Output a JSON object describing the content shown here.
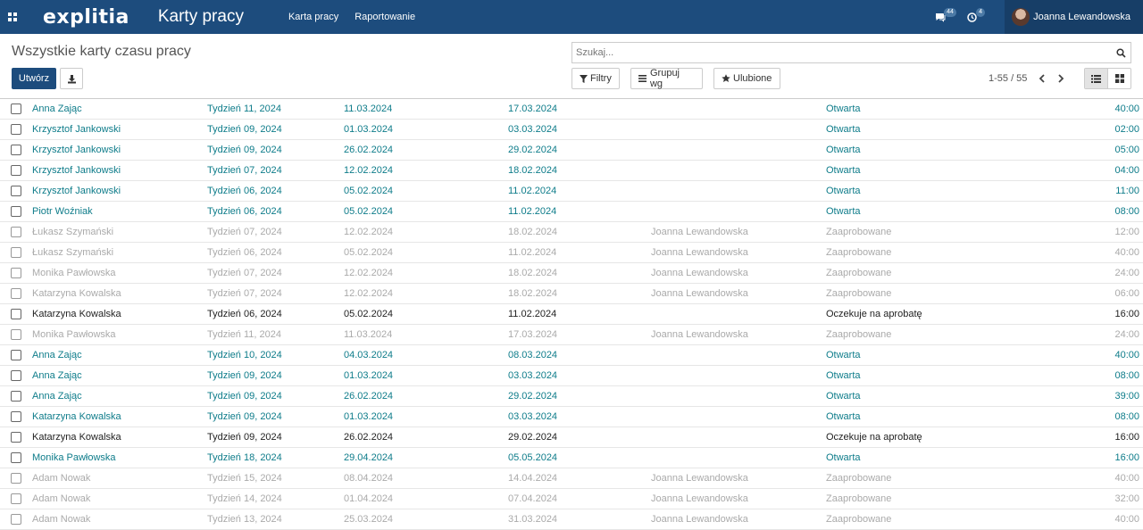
{
  "header": {
    "logo": "explitia",
    "app_title": "Karty pracy",
    "nav": [
      "Karta pracy",
      "Raportowanie"
    ],
    "messages_count": "44",
    "activities_count": "4",
    "user_name": "Joanna Lewandowska"
  },
  "control": {
    "page_title": "Wszystkie karty czasu pracy",
    "create_label": "Utwórz",
    "search_placeholder": "Szukaj...",
    "filters_label": "Filtry",
    "group_label": "Grupuj wg",
    "favorites_label": "Ulubione",
    "pager": "1-55 / 55"
  },
  "colors": {
    "brand": "#1d4c7d",
    "open": "#0e7c8a",
    "approved": "#aaaaaa",
    "pending": "#222222"
  },
  "rows": [
    {
      "employee": "Anna Zając",
      "week": "Tydzień 11, 2024",
      "start": "11.03.2024",
      "end": "17.03.2024",
      "approver": "",
      "status": "Otwarta",
      "hours": "40:00",
      "state": "open"
    },
    {
      "employee": "Krzysztof Jankowski",
      "week": "Tydzień 09, 2024",
      "start": "01.03.2024",
      "end": "03.03.2024",
      "approver": "",
      "status": "Otwarta",
      "hours": "02:00",
      "state": "open"
    },
    {
      "employee": "Krzysztof Jankowski",
      "week": "Tydzień 09, 2024",
      "start": "26.02.2024",
      "end": "29.02.2024",
      "approver": "",
      "status": "Otwarta",
      "hours": "05:00",
      "state": "open"
    },
    {
      "employee": "Krzysztof Jankowski",
      "week": "Tydzień 07, 2024",
      "start": "12.02.2024",
      "end": "18.02.2024",
      "approver": "",
      "status": "Otwarta",
      "hours": "04:00",
      "state": "open"
    },
    {
      "employee": "Krzysztof Jankowski",
      "week": "Tydzień 06, 2024",
      "start": "05.02.2024",
      "end": "11.02.2024",
      "approver": "",
      "status": "Otwarta",
      "hours": "11:00",
      "state": "open"
    },
    {
      "employee": "Piotr Woźniak",
      "week": "Tydzień 06, 2024",
      "start": "05.02.2024",
      "end": "11.02.2024",
      "approver": "",
      "status": "Otwarta",
      "hours": "08:00",
      "state": "open"
    },
    {
      "employee": "Łukasz Szymański",
      "week": "Tydzień 07, 2024",
      "start": "12.02.2024",
      "end": "18.02.2024",
      "approver": "Joanna Lewandowska",
      "status": "Zaaprobowane",
      "hours": "12:00",
      "state": "approved"
    },
    {
      "employee": "Łukasz Szymański",
      "week": "Tydzień 06, 2024",
      "start": "05.02.2024",
      "end": "11.02.2024",
      "approver": "Joanna Lewandowska",
      "status": "Zaaprobowane",
      "hours": "40:00",
      "state": "approved"
    },
    {
      "employee": "Monika Pawłowska",
      "week": "Tydzień 07, 2024",
      "start": "12.02.2024",
      "end": "18.02.2024",
      "approver": "Joanna Lewandowska",
      "status": "Zaaprobowane",
      "hours": "24:00",
      "state": "approved"
    },
    {
      "employee": "Katarzyna Kowalska",
      "week": "Tydzień 07, 2024",
      "start": "12.02.2024",
      "end": "18.02.2024",
      "approver": "Joanna Lewandowska",
      "status": "Zaaprobowane",
      "hours": "06:00",
      "state": "approved"
    },
    {
      "employee": "Katarzyna Kowalska",
      "week": "Tydzień 06, 2024",
      "start": "05.02.2024",
      "end": "11.02.2024",
      "approver": "",
      "status": "Oczekuje na aprobatę",
      "hours": "16:00",
      "state": "pending"
    },
    {
      "employee": "Monika Pawłowska",
      "week": "Tydzień 11, 2024",
      "start": "11.03.2024",
      "end": "17.03.2024",
      "approver": "Joanna Lewandowska",
      "status": "Zaaprobowane",
      "hours": "24:00",
      "state": "approved"
    },
    {
      "employee": "Anna Zając",
      "week": "Tydzień 10, 2024",
      "start": "04.03.2024",
      "end": "08.03.2024",
      "approver": "",
      "status": "Otwarta",
      "hours": "40:00",
      "state": "open"
    },
    {
      "employee": "Anna Zając",
      "week": "Tydzień 09, 2024",
      "start": "01.03.2024",
      "end": "03.03.2024",
      "approver": "",
      "status": "Otwarta",
      "hours": "08:00",
      "state": "open"
    },
    {
      "employee": "Anna Zając",
      "week": "Tydzień 09, 2024",
      "start": "26.02.2024",
      "end": "29.02.2024",
      "approver": "",
      "status": "Otwarta",
      "hours": "39:00",
      "state": "open"
    },
    {
      "employee": "Katarzyna Kowalska",
      "week": "Tydzień 09, 2024",
      "start": "01.03.2024",
      "end": "03.03.2024",
      "approver": "",
      "status": "Otwarta",
      "hours": "08:00",
      "state": "open"
    },
    {
      "employee": "Katarzyna Kowalska",
      "week": "Tydzień 09, 2024",
      "start": "26.02.2024",
      "end": "29.02.2024",
      "approver": "",
      "status": "Oczekuje na aprobatę",
      "hours": "16:00",
      "state": "pending"
    },
    {
      "employee": "Monika Pawłowska",
      "week": "Tydzień 18, 2024",
      "start": "29.04.2024",
      "end": "05.05.2024",
      "approver": "",
      "status": "Otwarta",
      "hours": "16:00",
      "state": "open"
    },
    {
      "employee": "Adam Nowak",
      "week": "Tydzień 15, 2024",
      "start": "08.04.2024",
      "end": "14.04.2024",
      "approver": "Joanna Lewandowska",
      "status": "Zaaprobowane",
      "hours": "40:00",
      "state": "approved"
    },
    {
      "employee": "Adam Nowak",
      "week": "Tydzień 14, 2024",
      "start": "01.04.2024",
      "end": "07.04.2024",
      "approver": "Joanna Lewandowska",
      "status": "Zaaprobowane",
      "hours": "32:00",
      "state": "approved"
    },
    {
      "employee": "Adam Nowak",
      "week": "Tydzień 13, 2024",
      "start": "25.03.2024",
      "end": "31.03.2024",
      "approver": "Joanna Lewandowska",
      "status": "Zaaprobowane",
      "hours": "40:00",
      "state": "approved"
    }
  ]
}
